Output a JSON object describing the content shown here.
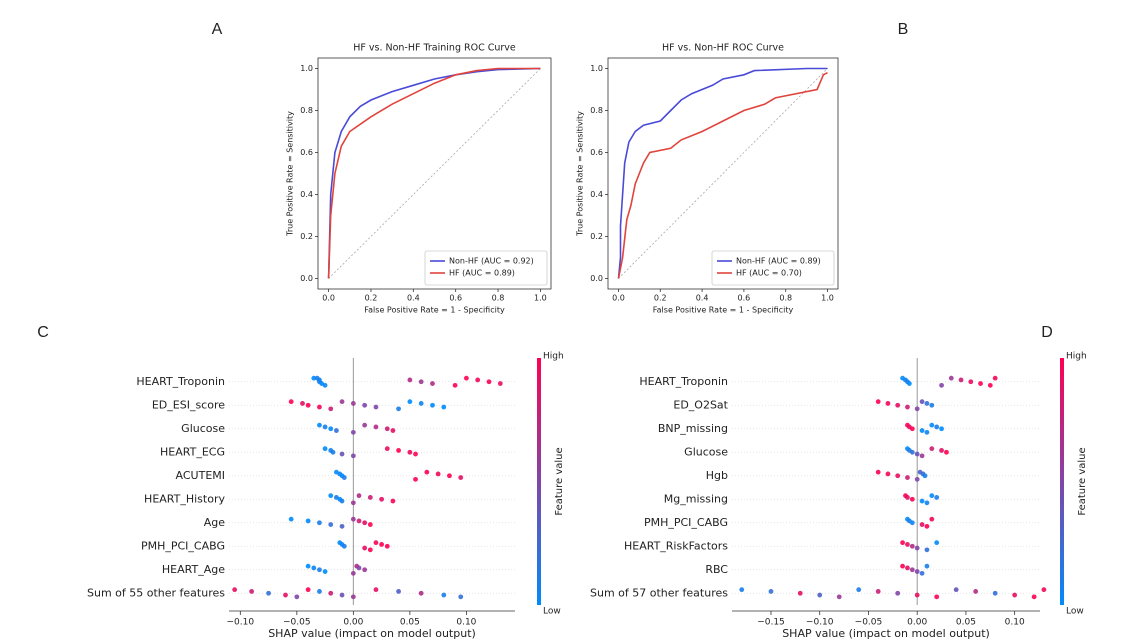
{
  "chart_data": [
    {
      "type": "line",
      "panel_label": "A",
      "title": "HF vs. Non-HF Training ROC Curve",
      "xlabel": "False Positive Rate = 1 - Specificity",
      "ylabel": "True Positive Rate = Sensitivity",
      "xlim": [
        -0.05,
        1.05
      ],
      "ylim": [
        -0.05,
        1.05
      ],
      "xticks": [
        {
          "value": 0,
          "label": "0.0"
        },
        0.2,
        0.4,
        0.6,
        0.8,
        {
          "value": 1,
          "label": "1.0"
        }
      ],
      "yticks": [
        {
          "value": 0,
          "label": "0.0"
        },
        0.2,
        0.4,
        0.6,
        0.8,
        {
          "value": 1,
          "label": "1.0"
        }
      ],
      "legend": "lower right",
      "series": [
        {
          "name": "Non-HF (AUC = 0.92)",
          "color": "#4a4ad8",
          "x": [
            0,
            0.01,
            0.03,
            0.06,
            0.1,
            0.15,
            0.2,
            0.3,
            0.4,
            0.5,
            0.6,
            0.7,
            0.8,
            1
          ],
          "values": [
            0,
            0.4,
            0.6,
            0.7,
            0.77,
            0.82,
            0.85,
            0.89,
            0.92,
            0.95,
            0.97,
            0.985,
            0.995,
            1
          ]
        },
        {
          "name": "HF (AUC = 0.89)",
          "color": "#e0443c",
          "x": [
            0,
            0.01,
            0.03,
            0.06,
            0.1,
            0.2,
            0.3,
            0.4,
            0.5,
            0.6,
            0.7,
            0.8,
            1
          ],
          "values": [
            0,
            0.3,
            0.5,
            0.63,
            0.7,
            0.77,
            0.83,
            0.88,
            0.93,
            0.97,
            0.99,
            1,
            1
          ]
        }
      ]
    },
    {
      "type": "line",
      "panel_label": "B",
      "title": "HF vs. Non-HF ROC Curve",
      "xlabel": "False Positive Rate = 1 - Specificity",
      "ylabel": "True Positive Rate = Sensitivity",
      "xlim": [
        -0.05,
        1.05
      ],
      "ylim": [
        -0.05,
        1.05
      ],
      "xticks": [
        {
          "value": 0,
          "label": "0.0"
        },
        0.2,
        0.4,
        0.6,
        0.8,
        {
          "value": 1,
          "label": "1.0"
        }
      ],
      "yticks": [
        {
          "value": 0,
          "label": "0.0"
        },
        0.2,
        0.4,
        0.6,
        0.8,
        {
          "value": 1,
          "label": "1.0"
        }
      ],
      "legend": "lower right",
      "series": [
        {
          "name": "Non-HF (AUC = 0.89)",
          "color": "#4a4ad8",
          "x": [
            0,
            0.01,
            0.01,
            0.02,
            0.03,
            0.05,
            0.08,
            0.12,
            0.2,
            0.25,
            0.3,
            0.35,
            0.45,
            0.5,
            0.6,
            0.65,
            0.9,
            1
          ],
          "values": [
            0,
            0.1,
            0.25,
            0.4,
            0.55,
            0.65,
            0.7,
            0.73,
            0.75,
            0.8,
            0.85,
            0.88,
            0.92,
            0.95,
            0.97,
            0.99,
            1,
            1
          ]
        },
        {
          "name": "HF (AUC = 0.70)",
          "color": "#e0443c",
          "x": [
            0,
            0.02,
            0.04,
            0.06,
            0.08,
            0.12,
            0.15,
            0.25,
            0.3,
            0.4,
            0.5,
            0.6,
            0.7,
            0.75,
            0.95,
            0.98,
            1
          ],
          "values": [
            0,
            0.1,
            0.28,
            0.35,
            0.45,
            0.55,
            0.6,
            0.62,
            0.66,
            0.7,
            0.75,
            0.8,
            0.83,
            0.86,
            0.9,
            0.97,
            0.98
          ]
        }
      ]
    },
    {
      "type": "beeswarm",
      "panel_label": "C",
      "xlabel": "SHAP value (impact on model output)",
      "xlim": [
        -0.11,
        0.143
      ],
      "xticks": [
        {
          "value": -0.1,
          "label": "−0.10"
        },
        {
          "value": -0.05,
          "label": "−0.05"
        },
        {
          "value": 0,
          "label": "0.00"
        },
        0.05,
        {
          "value": 0.1,
          "label": "0.10"
        }
      ],
      "cmap": [
        "#008bfb",
        "#ff0052"
      ],
      "colorbar_label": "Feature value",
      "colorbar_high": "High",
      "colorbar_low": "Low",
      "features": [
        {
          "name": "HEART_Troponin",
          "values": [
            -0.035,
            -0.03,
            -0.03,
            -0.028,
            -0.025,
            -0.032,
            0.05,
            0.06,
            0.07,
            0.09,
            0.1,
            0.11,
            0.12,
            0.13
          ],
          "feature_values": [
            0,
            0.05,
            0.1,
            0,
            0.05,
            0.1,
            0.7,
            0.6,
            0.7,
            1,
            1,
            0.95,
            1,
            0.9
          ]
        },
        {
          "name": "ED_ESI_score",
          "values": [
            -0.055,
            -0.045,
            -0.04,
            -0.03,
            -0.02,
            -0.01,
            0,
            0.01,
            0.02,
            0.04,
            0.05,
            0.06,
            0.07,
            0.08
          ],
          "feature_values": [
            1,
            0.9,
            1,
            0.95,
            0.8,
            0.6,
            0.6,
            0.5,
            0.5,
            0.1,
            0,
            0.05,
            0,
            0
          ]
        },
        {
          "name": "Glucose",
          "values": [
            -0.03,
            -0.025,
            -0.02,
            -0.015,
            0,
            0.01,
            0.02,
            0.03,
            0.035
          ],
          "feature_values": [
            0,
            0.1,
            0,
            0.2,
            0.5,
            0.6,
            0.7,
            0.8,
            0.9
          ]
        },
        {
          "name": "HEART_ECG",
          "values": [
            -0.025,
            -0.02,
            -0.018,
            -0.01,
            0,
            0.03,
            0.04,
            0.05,
            0.055
          ],
          "feature_values": [
            0,
            0.05,
            0.1,
            0.4,
            0.5,
            0.9,
            1,
            0.95,
            1
          ]
        },
        {
          "name": "ACUTEMI",
          "values": [
            -0.015,
            -0.012,
            -0.01,
            -0.008,
            0.055,
            0.065,
            0.075,
            0.085,
            0.095
          ],
          "feature_values": [
            0,
            0.05,
            0,
            0.1,
            1,
            1,
            0.95,
            1,
            0.9
          ]
        },
        {
          "name": "HEART_History",
          "values": [
            -0.02,
            -0.015,
            -0.012,
            -0.01,
            0,
            0.005,
            0.015,
            0.025,
            0.035
          ],
          "feature_values": [
            0,
            0.1,
            0,
            0.1,
            0.6,
            0.7,
            0.8,
            0.9,
            1
          ]
        },
        {
          "name": "Age",
          "values": [
            -0.055,
            -0.04,
            -0.03,
            -0.02,
            -0.01,
            0,
            0.005,
            0.01,
            0.015
          ],
          "feature_values": [
            0,
            0,
            0.1,
            0.2,
            0.3,
            0.6,
            0.8,
            0.9,
            1
          ]
        },
        {
          "name": "PMH_PCI_CABG",
          "values": [
            -0.012,
            -0.01,
            -0.008,
            0.01,
            0.015,
            0.02,
            0.025,
            0.03
          ],
          "feature_values": [
            0,
            0.05,
            0.1,
            0.9,
            1,
            0.95,
            1,
            1
          ]
        },
        {
          "name": "HEART_Age",
          "values": [
            -0.04,
            -0.035,
            -0.03,
            -0.025,
            0,
            0.003,
            0.005,
            0.01
          ],
          "feature_values": [
            0,
            0.05,
            0.1,
            0,
            0.6,
            0.7,
            0.5,
            0.6
          ]
        },
        {
          "name": "Sum of 55 other features",
          "values": [
            -0.105,
            -0.09,
            -0.075,
            -0.06,
            -0.05,
            -0.04,
            -0.03,
            -0.02,
            -0.01,
            0,
            0.02,
            0.04,
            0.06,
            0.08,
            0.095
          ],
          "feature_values": [
            0.9,
            0.8,
            0.2,
            0.9,
            0.5,
            1,
            0.1,
            0.8,
            0.4,
            0.6,
            0.9,
            0.3,
            0.7,
            0.1,
            0.2
          ]
        }
      ]
    },
    {
      "type": "beeswarm",
      "panel_label": "D",
      "xlabel": "SHAP value (impact on model output)",
      "xlim": [
        -0.19,
        0.126
      ],
      "xticks": [
        {
          "value": -0.15,
          "label": "−0.15"
        },
        {
          "value": -0.1,
          "label": "−0.10"
        },
        {
          "value": -0.05,
          "label": "−0.05"
        },
        {
          "value": 0,
          "label": "0.00"
        },
        0.05,
        {
          "value": 0.1,
          "label": "0.10"
        }
      ],
      "cmap": [
        "#008bfb",
        "#ff0052"
      ],
      "colorbar_label": "Feature value",
      "colorbar_high": "High",
      "colorbar_low": "Low",
      "features": [
        {
          "name": "HEART_Troponin",
          "values": [
            -0.015,
            -0.012,
            -0.01,
            -0.008,
            0.025,
            0.035,
            0.045,
            0.055,
            0.065,
            0.075,
            0.08
          ],
          "feature_values": [
            0,
            0.05,
            0.1,
            0,
            0.5,
            0.6,
            0.8,
            0.9,
            1,
            1,
            0.95
          ]
        },
        {
          "name": "ED_O2Sat",
          "values": [
            -0.04,
            -0.03,
            -0.02,
            -0.01,
            0,
            0.005,
            0.01,
            0.015
          ],
          "feature_values": [
            1,
            0.95,
            0.9,
            0.8,
            0.5,
            0.4,
            0.2,
            0.1
          ]
        },
        {
          "name": "BNP_missing",
          "values": [
            -0.01,
            -0.008,
            -0.005,
            0.005,
            0.01,
            0.015,
            0.02,
            0.025
          ],
          "feature_values": [
            1,
            0.9,
            1,
            0,
            0.05,
            0,
            0.1,
            0
          ]
        },
        {
          "name": "Glucose",
          "values": [
            -0.01,
            -0.008,
            -0.005,
            0,
            0.005,
            0.015,
            0.025,
            0.03
          ],
          "feature_values": [
            0,
            0.1,
            0.2,
            0.4,
            0.6,
            0.8,
            0.9,
            1
          ]
        },
        {
          "name": "Hgb",
          "values": [
            -0.04,
            -0.03,
            -0.02,
            -0.01,
            0,
            0.003,
            0.006,
            0.008
          ],
          "feature_values": [
            1,
            0.95,
            0.9,
            0.8,
            0.5,
            0.3,
            0.2,
            0.1
          ]
        },
        {
          "name": "Mg_missing",
          "values": [
            -0.012,
            -0.01,
            -0.005,
            0.005,
            0.01,
            0.015,
            0.02
          ],
          "feature_values": [
            1,
            0.9,
            0.95,
            0,
            0.05,
            0,
            0.1
          ]
        },
        {
          "name": "PMH_PCI_CABG",
          "values": [
            -0.01,
            -0.008,
            -0.005,
            0.005,
            0.01,
            0.015
          ],
          "feature_values": [
            0,
            0.1,
            0.05,
            0.9,
            1,
            0.95
          ]
        },
        {
          "name": "HEART_RiskFactors",
          "values": [
            -0.015,
            -0.01,
            -0.005,
            0,
            0.01,
            0.02
          ],
          "feature_values": [
            1,
            0.9,
            0.7,
            0.5,
            0.2,
            0
          ]
        },
        {
          "name": "RBC",
          "values": [
            -0.015,
            -0.01,
            -0.005,
            0,
            0.005,
            0.01
          ],
          "feature_values": [
            1,
            0.9,
            0.6,
            0.5,
            0.2,
            0.1
          ]
        },
        {
          "name": "Sum of 57 other features",
          "values": [
            -0.18,
            -0.15,
            -0.12,
            -0.1,
            -0.08,
            -0.06,
            -0.04,
            -0.02,
            0,
            0.02,
            0.04,
            0.06,
            0.08,
            0.1,
            0.12,
            0.13
          ],
          "feature_values": [
            0.1,
            0.2,
            0.9,
            0.3,
            0.6,
            0.1,
            0.8,
            0.5,
            0.9,
            1,
            0.4,
            0.7,
            0.2,
            0.9,
            1,
            0.95
          ]
        }
      ]
    }
  ]
}
